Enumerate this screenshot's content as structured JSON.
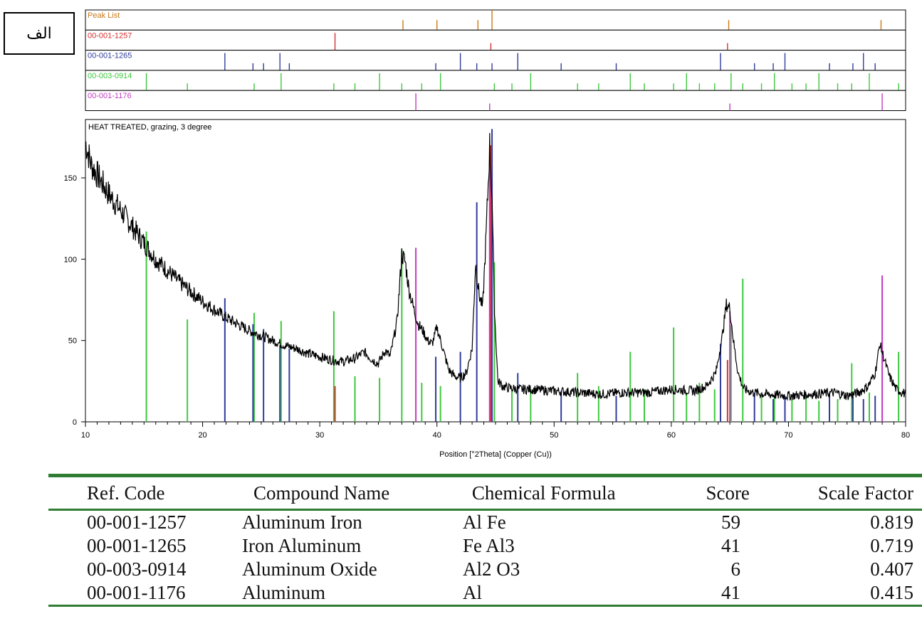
{
  "corner_label": "الف",
  "chart_data": {
    "type": "line",
    "peak_list": [
      {
        "name": "Peak List",
        "color": "#c87818",
        "positions": [
          37.1,
          40.0,
          43.5,
          44.7,
          64.9,
          77.9
        ]
      },
      {
        "name": "00-001-1257",
        "color": "#d33030",
        "positions": [
          31.3,
          44.6,
          64.8
        ]
      },
      {
        "name": "00-001-1265",
        "color": "#303c9c",
        "positions": [
          21.9,
          24.3,
          25.2,
          26.6,
          27.4,
          39.9,
          42.0,
          43.4,
          44.7,
          46.9,
          50.6,
          55.3,
          64.2,
          67.1,
          68.7,
          69.7,
          73.5,
          75.5,
          76.4,
          77.4
        ]
      },
      {
        "name": "00-003-0914",
        "color": "#3ec83e",
        "positions": [
          15.2,
          18.7,
          24.4,
          26.7,
          31.2,
          33.0,
          35.1,
          37.0,
          38.7,
          40.3,
          44.9,
          46.4,
          48.0,
          52.0,
          53.8,
          56.5,
          57.7,
          60.2,
          61.3,
          62.4,
          63.7,
          65.1,
          66.1,
          67.7,
          68.8,
          70.3,
          71.5,
          72.6,
          74.2,
          75.4,
          76.9,
          79.4
        ]
      },
      {
        "name": "00-001-1176",
        "color": "#c03cc0",
        "positions": [
          38.2,
          44.5,
          65.0,
          78.0
        ]
      }
    ],
    "title": "HEAT TREATED, grazing, 3 degree",
    "xlabel": "Position [°2Theta] (Copper (Cu))",
    "ylabel": "",
    "xlim": [
      10,
      80
    ],
    "ylim": [
      0,
      185
    ],
    "xticks": [
      10,
      20,
      30,
      40,
      50,
      60,
      70,
      80
    ],
    "yticks": [
      0,
      50,
      100,
      150
    ],
    "pattern": {
      "color": "#000000",
      "x": [
        10,
        10.5,
        11,
        12,
        13,
        14,
        15,
        16,
        17,
        18,
        19,
        20,
        21,
        22,
        23,
        24,
        25,
        26,
        27,
        28,
        29,
        30,
        31,
        32,
        33,
        33.8,
        34.5,
        35,
        35.6,
        36,
        36.6,
        37.0,
        37.3,
        37.6,
        38.0,
        38.4,
        38.8,
        39.2,
        39.6,
        40.0,
        40.5,
        41,
        41.5,
        42,
        42.5,
        43.0,
        43.3,
        43.6,
        43.9,
        44.2,
        44.5,
        44.7,
        44.9,
        45.2,
        45.6,
        46,
        47,
        48,
        50,
        52,
        54,
        56,
        58,
        60,
        62,
        63,
        63.8,
        64.3,
        64.7,
        65.0,
        65.3,
        65.7,
        66.2,
        67,
        68,
        70,
        72,
        74,
        75,
        76,
        76.8,
        77.4,
        77.8,
        78.2,
        78.6,
        79.2,
        80
      ],
      "y": [
        172,
        158,
        152,
        140,
        130,
        120,
        110,
        100,
        93,
        86,
        80,
        74,
        69,
        64,
        60,
        56,
        53,
        50,
        47,
        45,
        42,
        40,
        38,
        37,
        39,
        43,
        38,
        36,
        44,
        40,
        62,
        103,
        98,
        82,
        70,
        60,
        56,
        50,
        48,
        58,
        45,
        32,
        28,
        27,
        30,
        45,
        98,
        78,
        70,
        115,
        170,
        140,
        70,
        25,
        22,
        21,
        20,
        20,
        19,
        18,
        17,
        18,
        18,
        20,
        19,
        22,
        30,
        50,
        72,
        70,
        50,
        30,
        20,
        18,
        17,
        16,
        17,
        18,
        16,
        18,
        22,
        30,
        48,
        38,
        28,
        20,
        17
      ]
    },
    "references": [
      {
        "name": "00-003-0914",
        "color": "#3ec83e",
        "x": [
          15.2,
          18.7,
          24.4,
          26.7,
          31.2,
          33.0,
          35.1,
          37.0,
          38.7,
          40.3,
          44.9,
          46.4,
          48.0,
          52.0,
          53.8,
          56.5,
          57.7,
          60.2,
          61.3,
          62.4,
          63.7,
          65.1,
          66.1,
          67.7,
          68.8,
          70.3,
          71.5,
          72.6,
          74.2,
          75.4,
          76.9,
          79.4
        ],
        "y": [
          117,
          63,
          67,
          62,
          68,
          28,
          27,
          106,
          24,
          22,
          98,
          20,
          20,
          30,
          22,
          43,
          20,
          58,
          18,
          24,
          20,
          60,
          88,
          18,
          15,
          14,
          16,
          13,
          14,
          36,
          18,
          43
        ]
      },
      {
        "name": "00-001-1265",
        "color": "#303c9c",
        "x": [
          21.9,
          24.3,
          25.2,
          26.6,
          27.4,
          39.9,
          42.0,
          43.4,
          44.7,
          46.9,
          50.6,
          55.3,
          64.2,
          67.1,
          68.7,
          69.7,
          73.5,
          75.5,
          76.4,
          77.4
        ],
        "y": [
          76,
          60,
          57,
          47,
          45,
          40,
          43,
          135,
          180,
          30,
          19,
          16,
          48,
          18,
          14,
          16,
          18,
          17,
          14,
          16
        ]
      },
      {
        "name": "00-001-1257",
        "color": "#d33030",
        "x": [
          31.3,
          44.6,
          64.8
        ],
        "y": [
          22,
          170,
          38
        ]
      },
      {
        "name": "00-001-1176",
        "color": "#c03cc0",
        "x": [
          38.2,
          44.5,
          65.0,
          78.0
        ],
        "y": [
          107,
          160,
          68,
          90
        ]
      }
    ]
  },
  "results_table": {
    "headers": [
      "Ref. Code",
      "Compound Name",
      "Chemical Formula",
      "Score",
      "Scale Factor"
    ],
    "rows": [
      {
        "ref_code": "00-001-1257",
        "compound": "Aluminum Iron",
        "formula": "Al Fe",
        "score": "59",
        "scale": "0.819"
      },
      {
        "ref_code": "00-001-1265",
        "compound": "Iron Aluminum",
        "formula": "Fe Al3",
        "score": "41",
        "scale": "0.719"
      },
      {
        "ref_code": "00-003-0914",
        "compound": "Aluminum Oxide",
        "formula": "Al2 O3",
        "score": "6",
        "scale": "0.407"
      },
      {
        "ref_code": "00-001-1176",
        "compound": "Aluminum",
        "formula": "Al",
        "score": "41",
        "scale": "0.415"
      }
    ]
  }
}
